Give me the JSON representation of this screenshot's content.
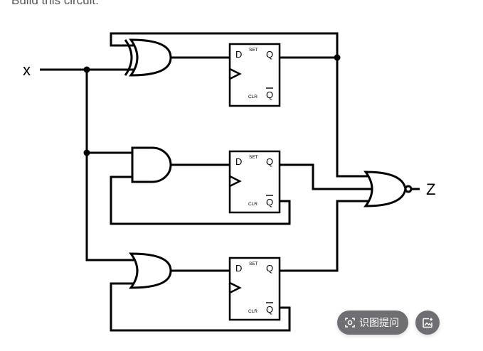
{
  "prompt": "Build this circuit.",
  "circuit": {
    "input_label": "x",
    "output_label": "Z",
    "ff_labels": {
      "d": "D",
      "q": "Q",
      "qbar": "Q",
      "set": "SET",
      "clr": "CLR"
    }
  },
  "actions": {
    "ask_label": "识图提问",
    "ask_icon": "scan-icon",
    "image_icon": "image-edit-icon"
  }
}
